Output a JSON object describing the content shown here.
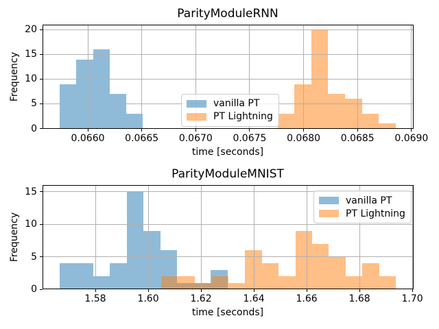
{
  "figure": {
    "background": "#ffffff",
    "grid_color": "#b0b0b0",
    "spine_color": "#000000",
    "legend_border_color": "#cccccc",
    "bar_alpha": 0.5
  },
  "chart_data": [
    {
      "type": "histogram",
      "title": "ParityModuleRNN",
      "xlabel": "time [seconds]",
      "ylabel": "Frequency",
      "xlim": [
        0.06558,
        0.06902
      ],
      "ylim": [
        0,
        21
      ],
      "grid": true,
      "legend_position": "center",
      "xticks": [
        {
          "value": 0.066,
          "label": "0.0660"
        },
        {
          "value": 0.0665,
          "label": "0.0665"
        },
        {
          "value": 0.067,
          "label": "0.0670"
        },
        {
          "value": 0.0675,
          "label": "0.0675"
        },
        {
          "value": 0.068,
          "label": "0.0680"
        },
        {
          "value": 0.0685,
          "label": "0.0685"
        },
        {
          "value": 0.069,
          "label": "0.0690"
        }
      ],
      "yticks": [
        {
          "value": 0,
          "label": "0"
        },
        {
          "value": 5,
          "label": "5"
        },
        {
          "value": 10,
          "label": "10"
        },
        {
          "value": 15,
          "label": "15"
        },
        {
          "value": 20,
          "label": "20"
        }
      ],
      "series": [
        {
          "name": "vanilla PT",
          "color": "#1f77b4",
          "bin_start": 0.06574,
          "bin_width": 0.000154,
          "counts": [
            9,
            14,
            16,
            7,
            3
          ]
        },
        {
          "name": "PT Lightning",
          "color": "#ff7f0e",
          "bin_start": 0.06776,
          "bin_width": 0.000156,
          "counts": [
            3,
            9,
            20,
            7,
            6,
            3,
            1
          ]
        }
      ]
    },
    {
      "type": "histogram",
      "title": "ParityModuleMNIST",
      "xlabel": "time [seconds]",
      "ylabel": "Frequency",
      "xlim": [
        1.56,
        1.7005
      ],
      "ylim": [
        0,
        16
      ],
      "grid": true,
      "legend_position": "upper right",
      "xticks": [
        {
          "value": 1.58,
          "label": "1.58"
        },
        {
          "value": 1.6,
          "label": "1.60"
        },
        {
          "value": 1.62,
          "label": "1.62"
        },
        {
          "value": 1.64,
          "label": "1.64"
        },
        {
          "value": 1.66,
          "label": "1.66"
        },
        {
          "value": 1.68,
          "label": "1.68"
        },
        {
          "value": 1.7,
          "label": "1.70"
        }
      ],
      "yticks": [
        {
          "value": 0,
          "label": "0"
        },
        {
          "value": 5,
          "label": "5"
        },
        {
          "value": 10,
          "label": "10"
        },
        {
          "value": 15,
          "label": "15"
        }
      ],
      "series": [
        {
          "name": "vanilla PT",
          "color": "#1f77b4",
          "bin_start": 1.5665,
          "bin_width": 0.00635,
          "counts": [
            4,
            4,
            2,
            4,
            15,
            9,
            6,
            1,
            1,
            3
          ]
        },
        {
          "name": "PT Lightning",
          "color": "#ff7f0e",
          "bin_start": 1.605,
          "bin_width": 0.00634,
          "counts": [
            2,
            2,
            1,
            2,
            1,
            6,
            4,
            2,
            9,
            7,
            5,
            2,
            4,
            2
          ]
        }
      ]
    }
  ]
}
